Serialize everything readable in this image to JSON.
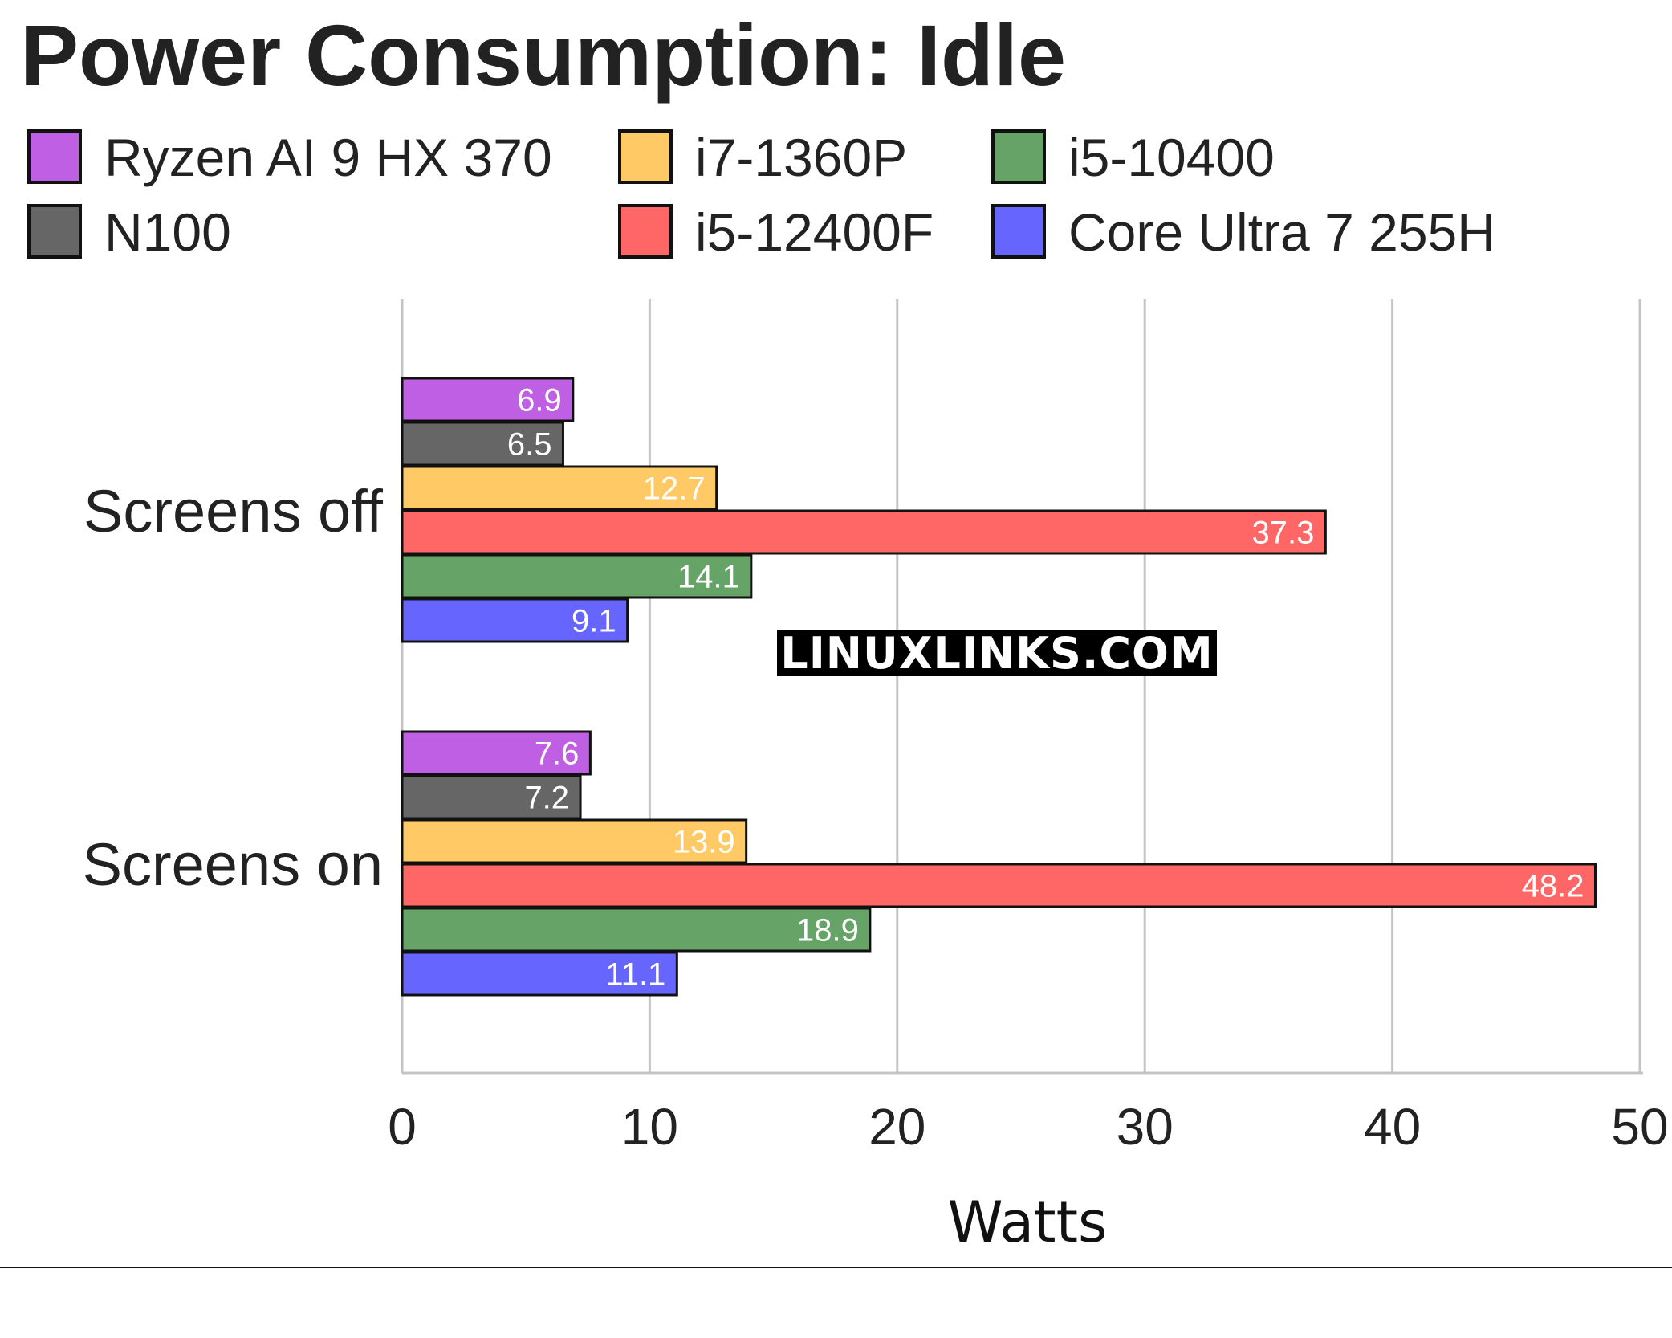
{
  "chart_data": {
    "type": "bar",
    "orientation": "horizontal",
    "title": "Power Consumption: Idle",
    "xlabel": "Watts",
    "ylabel": "",
    "xlim": [
      0,
      50
    ],
    "xticks": [
      "0",
      "10",
      "20",
      "30",
      "40",
      "50"
    ],
    "grid": "vertical",
    "legend_position": "top",
    "categories": [
      "Screens off",
      "Screens on"
    ],
    "series": [
      {
        "name": "Ryzen AI 9 HX 370",
        "color": "#bf5fe3",
        "values": [
          6.9,
          7.6
        ],
        "labels": [
          "6.9",
          "7.6"
        ]
      },
      {
        "name": "N100",
        "color": "#666666",
        "values": [
          6.5,
          7.2
        ],
        "labels": [
          "6.5",
          "7.2"
        ]
      },
      {
        "name": "i7-1360P",
        "color": "#ffc966",
        "values": [
          12.7,
          13.9
        ],
        "labels": [
          "12.7",
          "13.9"
        ]
      },
      {
        "name": "i5-12400F",
        "color": "#ff6666",
        "values": [
          37.3,
          48.2
        ],
        "labels": [
          "37.3",
          "48.2"
        ]
      },
      {
        "name": "i5-10400",
        "color": "#66a366",
        "values": [
          14.1,
          18.9
        ],
        "labels": [
          "14.1",
          "18.9"
        ]
      },
      {
        "name": "Core Ultra 7 255H",
        "color": "#6666ff",
        "values": [
          9.1,
          11.1
        ],
        "labels": [
          "9.1",
          "11.1"
        ]
      }
    ],
    "legend_order": [
      "Ryzen AI 9 HX 370",
      "i7-1360P",
      "i5-10400",
      "N100",
      "i5-12400F",
      "Core Ultra 7 255H"
    ]
  },
  "watermark": {
    "text": "LINUXLINKS.COM"
  }
}
